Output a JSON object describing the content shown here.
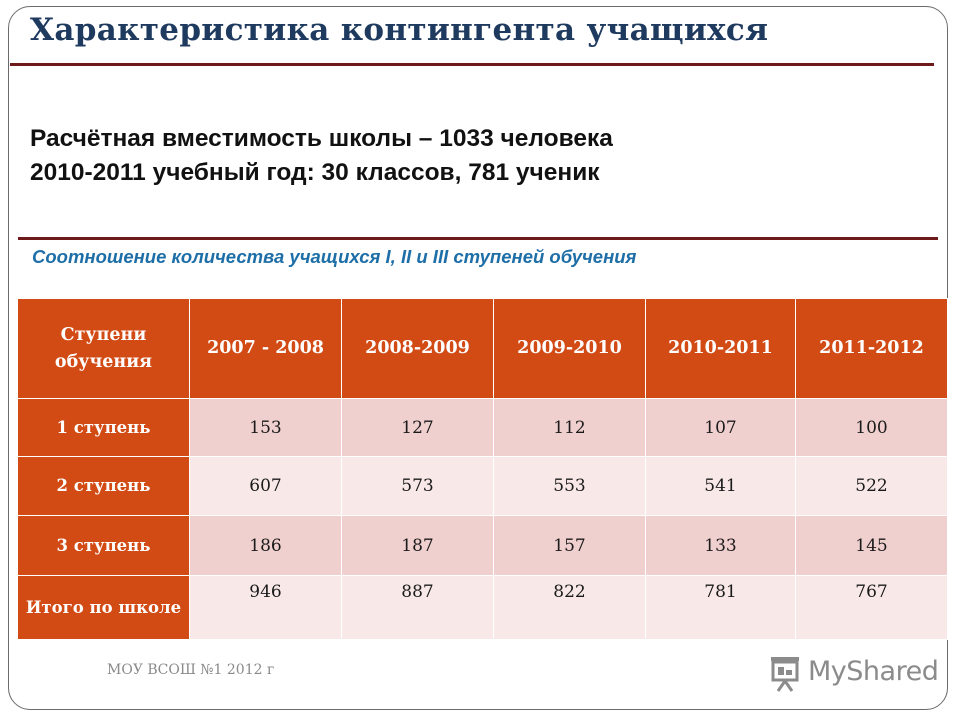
{
  "slide": {
    "title": "Характеристика контингента учащихся",
    "info_line_1": "Расчётная вместимость школы – 1033 человека",
    "info_line_2": "2010-2011 учебный год: 30  классов, 781  ученик",
    "subtitle": "Соотношение количества учащихся I, II и III ступеней обучения",
    "footer": "МОУ ВСОШ №1 2012 г",
    "logo_text": "MyShared",
    "logo_icon": "projector-screen-icon"
  },
  "table": {
    "headers": [
      "Ступени обучения",
      "2007 - 2008",
      "2008-2009",
      "2009-2010",
      "2010-2011",
      "2011-2012"
    ],
    "rows": [
      {
        "label": "1 ступень",
        "values": [
          "153",
          "127",
          "112",
          "107",
          "100"
        ]
      },
      {
        "label": "2 ступень",
        "values": [
          "607",
          "573",
          "553",
          "541",
          "522"
        ]
      },
      {
        "label": "3 ступень",
        "values": [
          "186",
          "187",
          "157",
          "133",
          "145"
        ]
      },
      {
        "label": "Итого по школе",
        "values": [
          "946",
          "887",
          "822",
          "781",
          "767"
        ]
      }
    ]
  },
  "colors": {
    "header_bg": "#d24a14",
    "row_odd_bg": "#f0d0cf",
    "row_even_bg": "#f8e9e8",
    "title": "#1f3a5f",
    "subtitle": "#1e6fa8",
    "rule": "#6e1a1a"
  }
}
